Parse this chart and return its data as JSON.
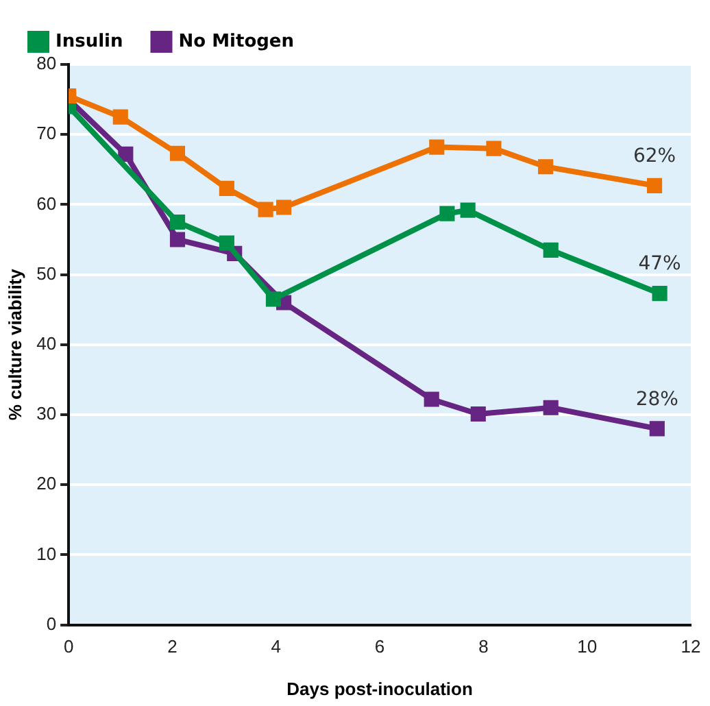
{
  "chart_data": {
    "type": "line",
    "xlabel": "Days post-inoculation",
    "ylabel": "% culture viability",
    "xlim": [
      0,
      12
    ],
    "xticks": [
      0,
      2,
      4,
      6,
      8,
      10,
      12
    ],
    "ylim": [
      0,
      80
    ],
    "yticks": [
      0,
      10,
      20,
      30,
      40,
      50,
      60,
      70,
      80
    ],
    "series": [
      {
        "color": "#ee7203",
        "x": [
          0,
          1.0,
          2.1,
          3.05,
          3.8,
          4.15,
          7.1,
          8.2,
          9.2,
          11.3
        ],
        "values": [
          75.5,
          72.5,
          67.3,
          62.3,
          59.3,
          59.6,
          68.2,
          68,
          65.4,
          62.7
        ]
      },
      {
        "name": "Insulin",
        "color": "#009149",
        "x": [
          0,
          2.1,
          3.05,
          3.95,
          7.3,
          7.7,
          9.3,
          11.4
        ],
        "values": [
          74,
          57.5,
          54.5,
          46.5,
          58.7,
          59.2,
          53.5,
          47.3
        ]
      },
      {
        "name": "No Mitogen",
        "color": "#662483",
        "x": [
          0,
          1.1,
          2.1,
          3.2,
          4.15,
          7.0,
          7.9,
          9.3,
          11.35
        ],
        "values": [
          75,
          67.2,
          55,
          53,
          46,
          32.2,
          30.1,
          31,
          28
        ]
      }
    ],
    "annotations": [
      {
        "text": "62%",
        "x": 11.3,
        "y": 62.7
      },
      {
        "text": "47%",
        "x": 11.4,
        "y": 47.3
      },
      {
        "text": "28%",
        "x": 11.35,
        "y": 28
      }
    ],
    "grid": "y",
    "legend": "top",
    "marker": "square",
    "line_style": "solid"
  }
}
